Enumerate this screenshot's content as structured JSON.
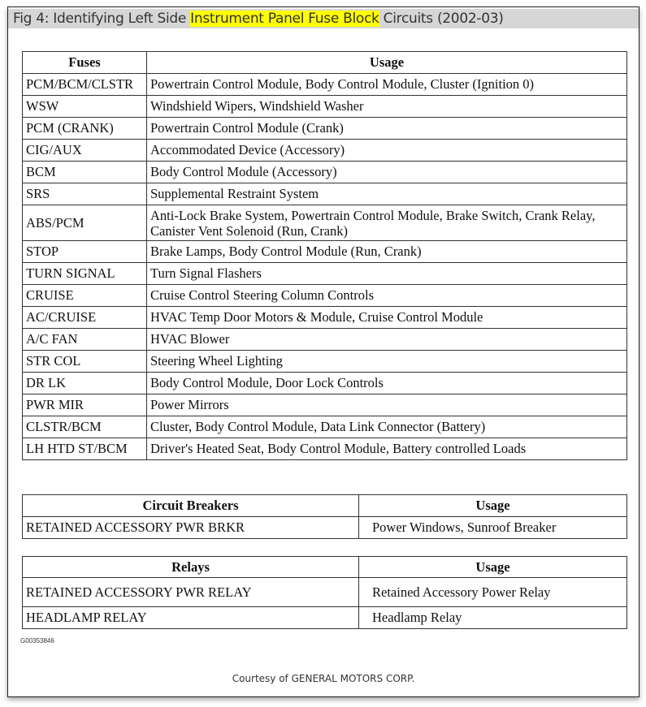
{
  "title": {
    "prefix": "Fig 4: Identifying Left Side ",
    "highlight": "Instrument Panel Fuse Block",
    "suffix": " Circuits (2002-03)",
    "highlight_color": "#ffff00"
  },
  "fuses": {
    "headers": [
      "Fuses",
      "Usage"
    ],
    "rows": [
      [
        "PCM/BCM/CLSTR",
        "Powertrain Control Module, Body Control Module, Cluster (Ignition  0)"
      ],
      [
        "WSW",
        "Windshield Wipers, Windshield Washer"
      ],
      [
        "PCM (CRANK)",
        "Powertrain Control Module (Crank)"
      ],
      [
        "CIG/AUX",
        "Accommodated Device (Accessory)"
      ],
      [
        "BCM",
        "Body Control Module (Accessory)"
      ],
      [
        "SRS",
        "Supplemental Restraint System"
      ],
      [
        "ABS/PCM",
        "Anti-Lock Brake System, Powertrain Control Module, Brake Switch, Crank Relay, Canister Vent Solenoid (Run, Crank)"
      ],
      [
        "STOP",
        "Brake Lamps, Body Control Module (Run, Crank)"
      ],
      [
        "TURN SIGNAL",
        "Turn Signal Flashers"
      ],
      [
        "CRUISE",
        "Cruise Control Steering Column Controls"
      ],
      [
        "AC/CRUISE",
        "HVAC Temp Door Motors & Module, Cruise Control Module"
      ],
      [
        "A/C FAN",
        "HVAC Blower"
      ],
      [
        "STR COL",
        "Steering Wheel Lighting"
      ],
      [
        "DR LK",
        "Body Control Module, Door Lock Controls"
      ],
      [
        "PWR MIR",
        "Power Mirrors"
      ],
      [
        "CLSTR/BCM",
        "Cluster, Body Control Module, Data Link Connector (Battery)"
      ],
      [
        "LH HTD ST/BCM",
        "Driver's Heated Seat, Body Control Module, Battery controlled Loads"
      ]
    ]
  },
  "breakers": {
    "headers": [
      "Circuit Breakers",
      "Usage"
    ],
    "rows": [
      [
        "RETAINED ACCESSORY PWR BRKR",
        "Power Windows, Sunroof Breaker"
      ]
    ]
  },
  "relays": {
    "headers": [
      "Relays",
      "Usage"
    ],
    "rows": [
      [
        "RETAINED ACCESSORY PWR RELAY",
        "Retained Accessory Power Relay"
      ],
      [
        "HEADLAMP RELAY",
        "Headlamp Relay"
      ]
    ]
  },
  "figure_id": "G00353846",
  "courtesy": "Courtesy of GENERAL MOTORS CORP."
}
